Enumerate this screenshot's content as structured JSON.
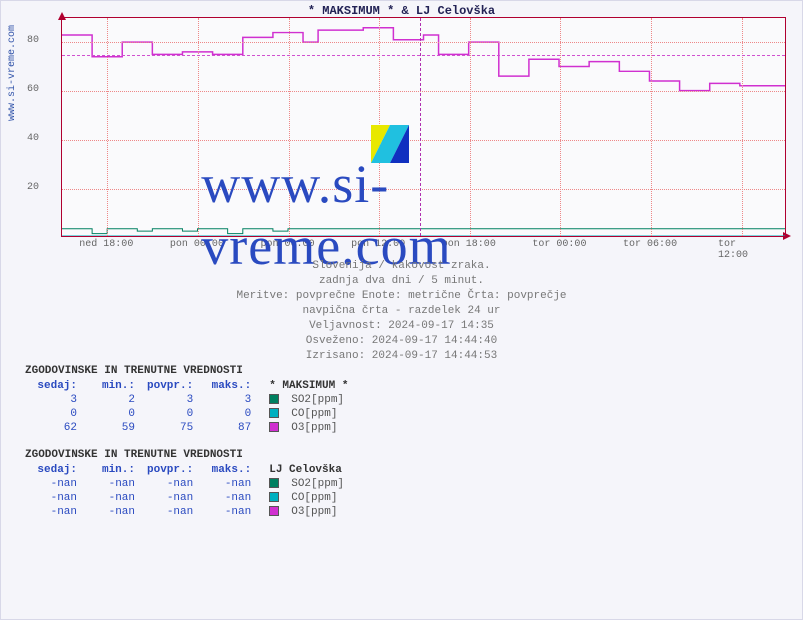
{
  "chart": {
    "title": "* MAKSIMUM * & LJ Celovška",
    "y_axis_label": "www.si-vreme.com",
    "ylim": [
      0,
      90
    ],
    "yticks": [
      20,
      40,
      60,
      80
    ],
    "xlim": [
      0,
      48
    ],
    "xticks": [
      {
        "pos": 3,
        "label": "ned 18:00"
      },
      {
        "pos": 9,
        "label": "pon 00:00"
      },
      {
        "pos": 15,
        "label": "pon 06:00"
      },
      {
        "pos": 21,
        "label": "pon 12:00"
      },
      {
        "pos": 27,
        "label": "pon 18:00"
      },
      {
        "pos": 33,
        "label": "tor 00:00"
      },
      {
        "pos": 39,
        "label": "tor 06:00"
      },
      {
        "pos": 45,
        "label": "tor 12:00"
      }
    ],
    "divider_x": 23.7,
    "reference_y": 75,
    "background_color": "#fafafc",
    "grid_color": "#e88",
    "axis_color": "#b00030",
    "series": [
      {
        "name": "O3",
        "color": "#d030d0",
        "line_width": 1.5,
        "type": "step",
        "data": [
          [
            0,
            83
          ],
          [
            2,
            83
          ],
          [
            2,
            74
          ],
          [
            4,
            74
          ],
          [
            4,
            80
          ],
          [
            6,
            80
          ],
          [
            6,
            75
          ],
          [
            8,
            75
          ],
          [
            8,
            76
          ],
          [
            10,
            76
          ],
          [
            10,
            75
          ],
          [
            12,
            75
          ],
          [
            12,
            82
          ],
          [
            14,
            82
          ],
          [
            14,
            84
          ],
          [
            16,
            84
          ],
          [
            16,
            80
          ],
          [
            17,
            80
          ],
          [
            17,
            85
          ],
          [
            20,
            85
          ],
          [
            20,
            86
          ],
          [
            22,
            86
          ],
          [
            22,
            81
          ],
          [
            24,
            81
          ],
          [
            24,
            83
          ],
          [
            25,
            83
          ],
          [
            25,
            75
          ],
          [
            27,
            75
          ],
          [
            27,
            80
          ],
          [
            29,
            80
          ],
          [
            29,
            66
          ],
          [
            31,
            66
          ],
          [
            31,
            73
          ],
          [
            33,
            73
          ],
          [
            33,
            70
          ],
          [
            35,
            70
          ],
          [
            35,
            72
          ],
          [
            37,
            72
          ],
          [
            37,
            68
          ],
          [
            39,
            68
          ],
          [
            39,
            64
          ],
          [
            41,
            64
          ],
          [
            41,
            60
          ],
          [
            43,
            60
          ],
          [
            43,
            63
          ],
          [
            45,
            63
          ],
          [
            45,
            62
          ],
          [
            48,
            62
          ]
        ]
      },
      {
        "name": "SO2",
        "color": "#008060",
        "line_width": 1,
        "type": "step",
        "data": [
          [
            0,
            3
          ],
          [
            2,
            3
          ],
          [
            2,
            1
          ],
          [
            3,
            1
          ],
          [
            3,
            3
          ],
          [
            5,
            3
          ],
          [
            5,
            2
          ],
          [
            6,
            2
          ],
          [
            6,
            3
          ],
          [
            8,
            3
          ],
          [
            8,
            2
          ],
          [
            9,
            2
          ],
          [
            9,
            3
          ],
          [
            11,
            3
          ],
          [
            11,
            1
          ],
          [
            12,
            1
          ],
          [
            12,
            3
          ],
          [
            14,
            3
          ],
          [
            14,
            2
          ],
          [
            15,
            2
          ],
          [
            15,
            3
          ],
          [
            48,
            3
          ]
        ]
      },
      {
        "name": "CO",
        "color": "#00b0c0",
        "line_width": 1,
        "type": "line",
        "data": [
          [
            0,
            0
          ],
          [
            48,
            0
          ]
        ]
      }
    ],
    "watermark_text": "www.si-vreme.com",
    "watermark_logo_colors": [
      "#e8e800",
      "#20c0e0",
      "#1030c0"
    ]
  },
  "caption": {
    "line1": "Slovenija / kakovost zraka.",
    "line2": "zadnja dva dni / 5 minut.",
    "line3": "Meritve: povprečne  Enote: metrične  Črta: povprečje",
    "line4": "navpična črta - razdelek 24 ur",
    "line5": "Veljavnost: 2024-09-17 14:35",
    "line6": "Osveženo: 2024-09-17 14:44:40",
    "line7": "Izrisano: 2024-09-17 14:44:53"
  },
  "tables": [
    {
      "title": "ZGODOVINSKE IN TRENUTNE VREDNOSTI",
      "series_name": "* MAKSIMUM *",
      "columns": [
        "sedaj:",
        "min.:",
        "povpr.:",
        "maks.:"
      ],
      "rows": [
        {
          "vals": [
            "3",
            "2",
            "3",
            "3"
          ],
          "swatch": "#008060",
          "label": "SO2[ppm]"
        },
        {
          "vals": [
            "0",
            "0",
            "0",
            "0"
          ],
          "swatch": "#00b0c0",
          "label": "CO[ppm]"
        },
        {
          "vals": [
            "62",
            "59",
            "75",
            "87"
          ],
          "swatch": "#d030d0",
          "label": "O3[ppm]"
        }
      ]
    },
    {
      "title": "ZGODOVINSKE IN TRENUTNE VREDNOSTI",
      "series_name": "LJ Celovška",
      "columns": [
        "sedaj:",
        "min.:",
        "povpr.:",
        "maks.:"
      ],
      "rows": [
        {
          "vals": [
            "-nan",
            "-nan",
            "-nan",
            "-nan"
          ],
          "swatch": "#008060",
          "label": "SO2[ppm]"
        },
        {
          "vals": [
            "-nan",
            "-nan",
            "-nan",
            "-nan"
          ],
          "swatch": "#00b0c0",
          "label": "CO[ppm]"
        },
        {
          "vals": [
            "-nan",
            "-nan",
            "-nan",
            "-nan"
          ],
          "swatch": "#d030d0",
          "label": "O3[ppm]"
        }
      ]
    }
  ]
}
